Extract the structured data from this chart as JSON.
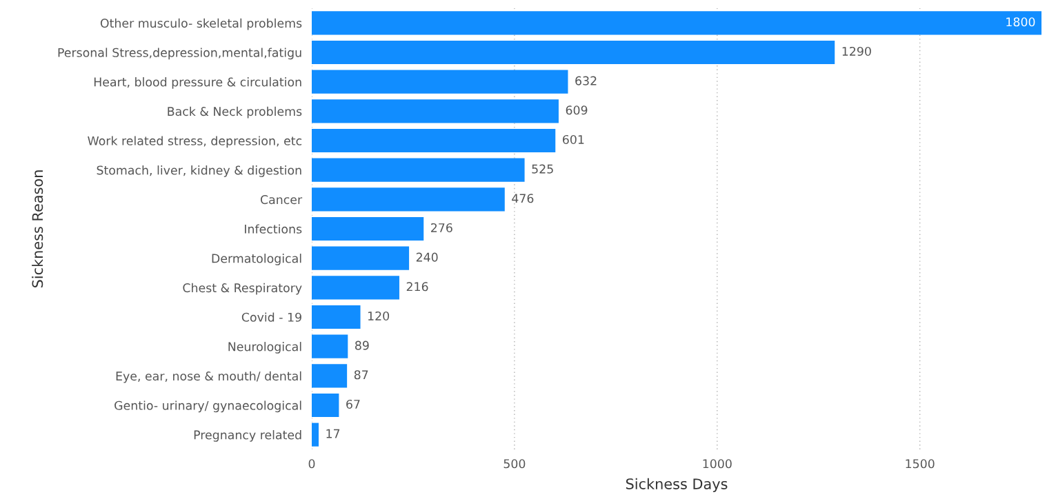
{
  "chart_data": {
    "type": "bar",
    "orientation": "horizontal",
    "xlabel": "Sickness Days",
    "ylabel": "Sickness Reason",
    "categories": [
      "Other musculo- skeletal problems",
      "Personal Stress,depression,mental,fatigu",
      "Heart, blood pressure & circulation",
      "Back & Neck problems",
      "Work related stress, depression, etc",
      "Stomach, liver, kidney & digestion",
      "Cancer",
      "Infections",
      "Dermatological",
      "Chest & Respiratory",
      "Covid - 19",
      "Neurological",
      "Eye, ear, nose & mouth/ dental",
      "Gentio- urinary/ gynaecological",
      "Pregnancy related"
    ],
    "values": [
      1800,
      1290,
      632,
      609,
      601,
      525,
      476,
      276,
      240,
      216,
      120,
      89,
      87,
      67,
      17
    ],
    "color": "#118dff",
    "xlim": [
      0,
      1800
    ],
    "xticks": [
      0,
      500,
      1000,
      1500
    ],
    "grid": "x",
    "data_labels": true
  }
}
